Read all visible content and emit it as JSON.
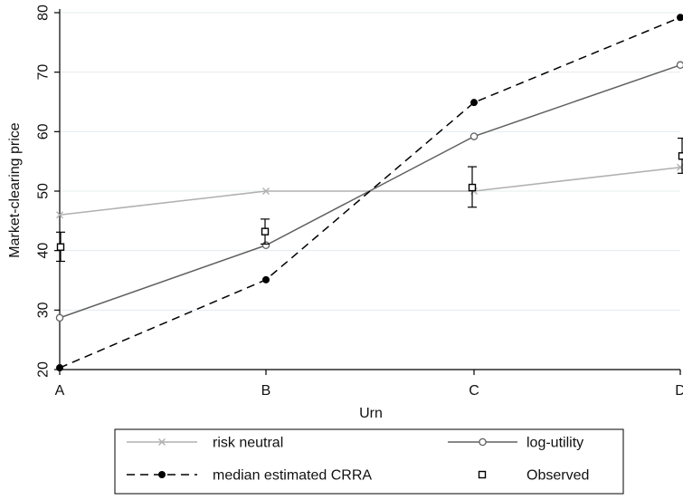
{
  "chart_data": {
    "type": "line",
    "title": "",
    "xlabel": "Urn",
    "ylabel": "Market-clearing price",
    "categories": [
      "A",
      "B",
      "C",
      "D"
    ],
    "ylim": [
      20,
      80
    ],
    "yticks": [
      20,
      30,
      40,
      50,
      60,
      70,
      80
    ],
    "grid": "horizontal",
    "legend_position": "bottom",
    "series": [
      {
        "name": "risk neutral",
        "values": [
          46,
          50,
          50,
          54
        ],
        "color": "#b0b0b0",
        "marker": "x",
        "dash": "solid"
      },
      {
        "name": "log-utility",
        "values": [
          28.7,
          40.9,
          59.2,
          71.2
        ],
        "color": "#606060",
        "marker": "hollow-circle",
        "dash": "solid"
      },
      {
        "name": "median estimated CRRA",
        "values": [
          20.3,
          35.1,
          64.9,
          79.2
        ],
        "color": "#000000",
        "marker": "filled-circle",
        "dash": "dashed"
      }
    ],
    "observed": {
      "name": "Observed",
      "values": [
        40.6,
        43.2,
        50.6,
        55.9
      ],
      "ci_low": [
        38.2,
        41.1,
        47.3,
        53.0
      ],
      "ci_high": [
        43.1,
        45.3,
        54.1,
        58.9
      ],
      "marker": "hollow-square",
      "color": "#000000"
    }
  }
}
